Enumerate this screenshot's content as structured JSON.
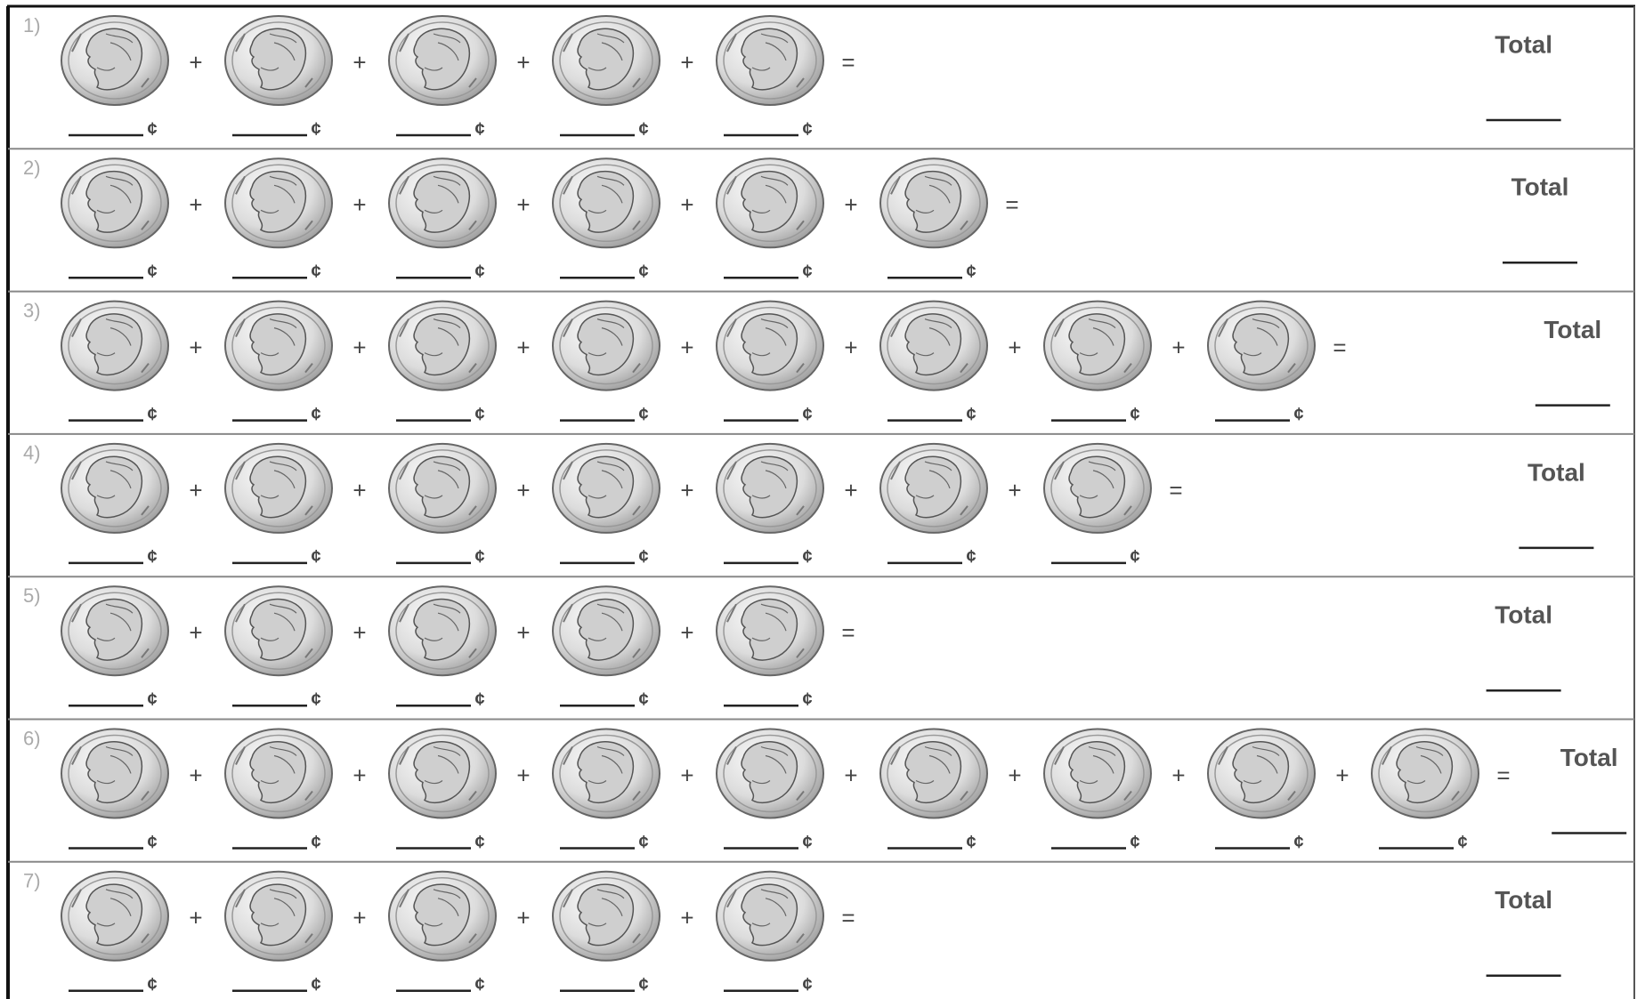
{
  "symbols": {
    "plus": "+",
    "equals": "=",
    "total": "Total"
  },
  "rows": [
    {
      "label": "1)",
      "blanks": [
        "¢",
        "¢",
        "¢",
        "¢",
        "¢"
      ]
    },
    {
      "label": "2)",
      "blanks": [
        "¢",
        "¢",
        "¢",
        "¢",
        "¢",
        "¢"
      ]
    },
    {
      "label": "3)",
      "blanks": [
        "¢",
        "¢",
        "¢",
        "¢",
        "¢",
        "¢",
        "¢",
        "¢"
      ]
    },
    {
      "label": "4)",
      "blanks": [
        "¢",
        "¢",
        "¢",
        "¢",
        "¢",
        "¢",
        "¢"
      ]
    },
    {
      "label": "5)",
      "blanks": [
        "¢",
        "¢",
        "¢",
        "¢",
        "¢"
      ]
    },
    {
      "label": "6)",
      "blanks": [
        "¢",
        "¢",
        "¢",
        "¢",
        "¢",
        "¢",
        "¢",
        "¢",
        "¢"
      ]
    },
    {
      "label": "7)",
      "blanks": [
        "¢",
        "¢",
        "¢",
        "¢",
        "¢"
      ]
    }
  ]
}
